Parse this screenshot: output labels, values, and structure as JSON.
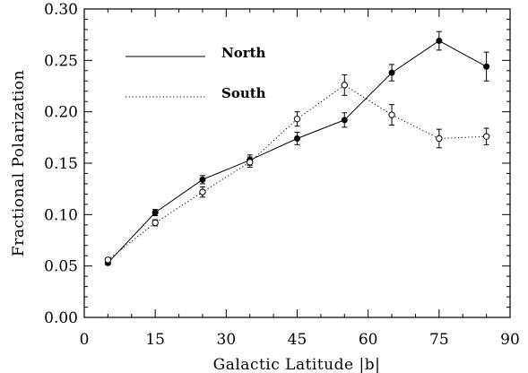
{
  "chart_data": {
    "type": "line",
    "title": "",
    "xlabel": "Galactic Latitude |b|",
    "ylabel": "Fractional Polarization",
    "xlim": [
      0,
      90
    ],
    "ylim": [
      0.0,
      0.3
    ],
    "xticks": [
      0,
      15,
      30,
      45,
      60,
      75,
      90
    ],
    "yticks": [
      0.0,
      0.05,
      0.1,
      0.15,
      0.2,
      0.25,
      0.3
    ],
    "xtick_labels": [
      "0",
      "15",
      "30",
      "45",
      "60",
      "75",
      "90"
    ],
    "ytick_labels": [
      "0.00",
      "0.05",
      "0.10",
      "0.15",
      "0.20",
      "0.25",
      "0.30"
    ],
    "grid": false,
    "legend_position": "top-left",
    "series": [
      {
        "name": "North",
        "line_style": "solid",
        "marker": "filled-circle",
        "x": [
          5,
          15,
          25,
          35,
          45,
          55,
          65,
          75,
          85
        ],
        "y": [
          0.053,
          0.102,
          0.134,
          0.153,
          0.174,
          0.192,
          0.238,
          0.269,
          0.244
        ],
        "err": [
          0.002,
          0.003,
          0.004,
          0.005,
          0.006,
          0.007,
          0.008,
          0.009,
          0.014
        ]
      },
      {
        "name": "South",
        "line_style": "dotted",
        "marker": "open-circle",
        "x": [
          5,
          15,
          25,
          35,
          45,
          55,
          65,
          75,
          85
        ],
        "y": [
          0.056,
          0.092,
          0.122,
          0.151,
          0.193,
          0.226,
          0.197,
          0.174,
          0.176
        ],
        "err": [
          0.002,
          0.003,
          0.005,
          0.005,
          0.007,
          0.01,
          0.01,
          0.009,
          0.008
        ]
      }
    ]
  }
}
